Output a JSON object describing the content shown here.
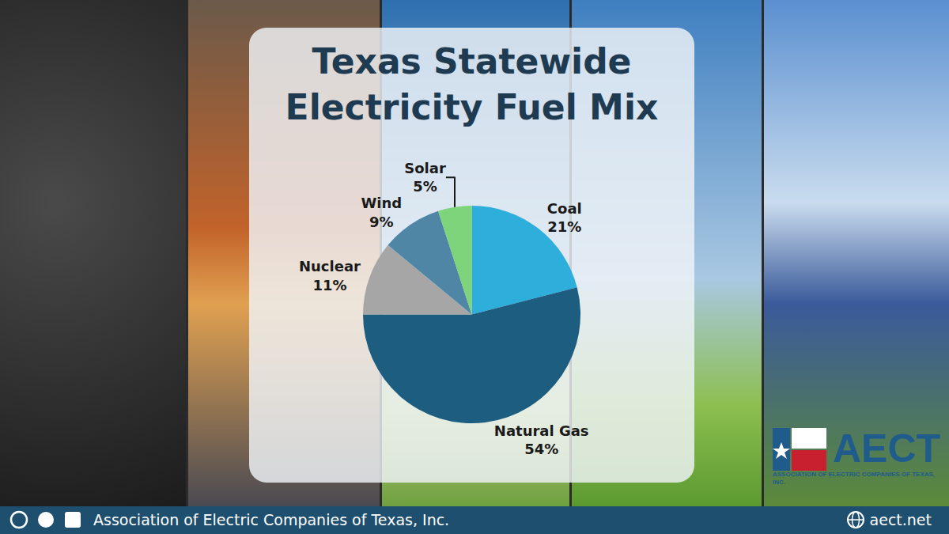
{
  "chart_data": {
    "type": "pie",
    "title": "Texas Statewide Electricity Fuel Mix",
    "categories": [
      "Coal",
      "Natural Gas",
      "Nuclear",
      "Wind",
      "Solar"
    ],
    "values": [
      21,
      54,
      11,
      9,
      5
    ],
    "value_labels": [
      "21%",
      "54%",
      "11%",
      "9%",
      "5%"
    ],
    "colors": [
      "#2eaedb",
      "#1d5d80",
      "#a6a6a6",
      "#4f86a6",
      "#7ed47a"
    ],
    "data_labels": true
  },
  "footer": {
    "organization": "Association of Electric Companies of Texas, Inc.",
    "website": "aect.net"
  },
  "logo": {
    "name": "AECT",
    "subtitle": "ASSOCIATION OF ELECTRIC COMPANIES OF TEXAS, INC."
  }
}
